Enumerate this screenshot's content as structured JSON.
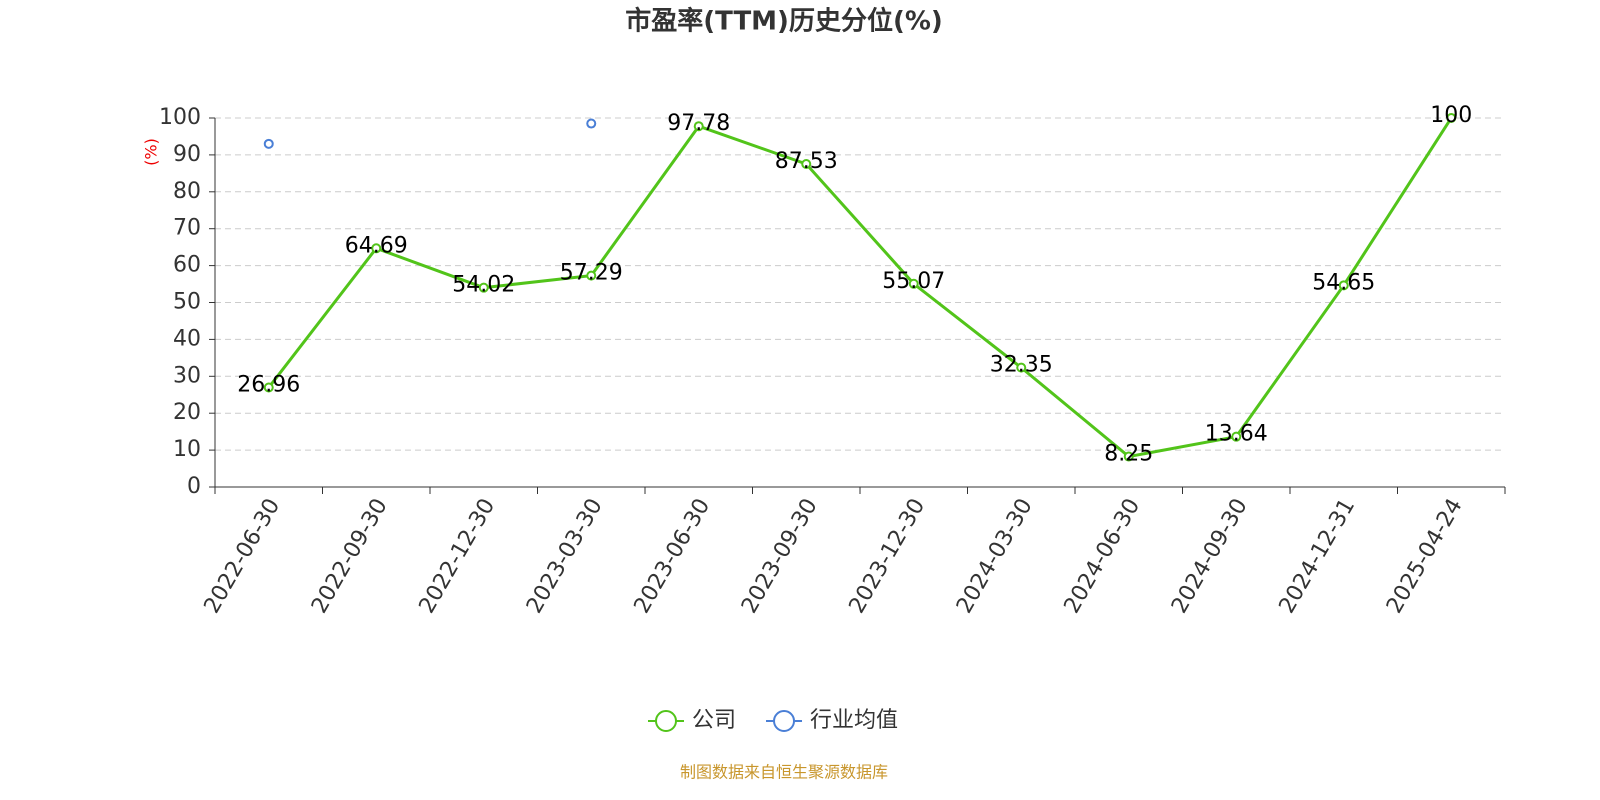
{
  "chart_data": {
    "type": "line",
    "title": "市盈率(TTM)历史分位(%)",
    "y_label": "(%)",
    "categories": [
      "2022-06-30",
      "2022-09-30",
      "2022-12-30",
      "2023-03-30",
      "2023-06-30",
      "2023-09-30",
      "2023-12-30",
      "2024-03-30",
      "2024-06-30",
      "2024-09-30",
      "2024-12-31",
      "2025-04-24"
    ],
    "series": [
      {
        "name": "公司",
        "color": "#52c41a",
        "values": [
          26.96,
          64.69,
          54.02,
          57.29,
          97.78,
          87.53,
          55.07,
          32.35,
          8.25,
          13.64,
          54.65,
          100
        ]
      },
      {
        "name": "行业均值",
        "color": "#4a7fd6",
        "values": [
          93,
          null,
          null,
          98.5,
          null,
          null,
          null,
          null,
          null,
          null,
          null,
          null
        ]
      }
    ],
    "ylim": [
      0,
      100
    ],
    "yticks": [
      0,
      10,
      20,
      30,
      40,
      50,
      60,
      70,
      80,
      90,
      100
    ],
    "grid": true,
    "legend": "bottom",
    "source": "制图数据来自恒生聚源数据库"
  }
}
